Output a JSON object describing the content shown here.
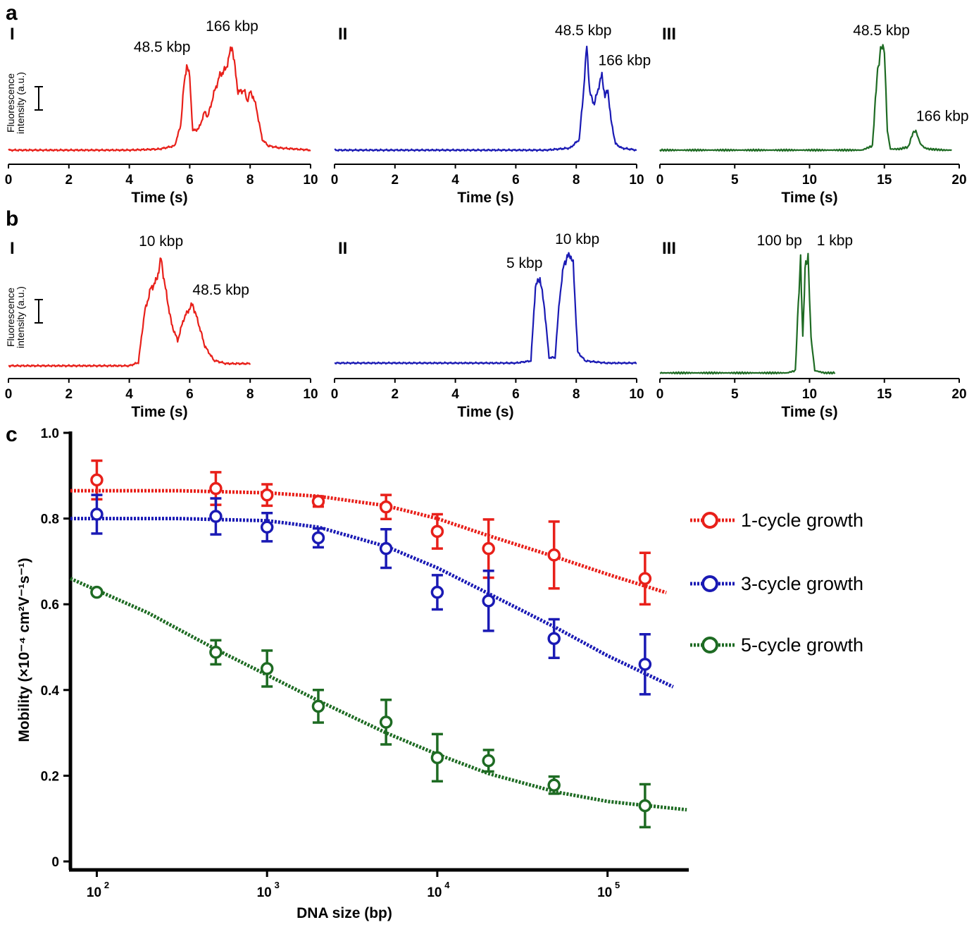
{
  "chart_data": [
    {
      "type": "line",
      "panel": "a",
      "subpanel": "I",
      "color": "#e8201a",
      "xlabel": "Time (s)",
      "ylabel": "Fluorescence intensity (a.u.)",
      "xlim": [
        0,
        10
      ],
      "xticks": [
        "0",
        "2",
        "4",
        "6",
        "8",
        "10"
      ],
      "annotations": [
        {
          "text": "48.5 kbp",
          "x": 5.9
        },
        {
          "text": "166 kbp",
          "x": 7.4
        }
      ],
      "x": [
        0,
        1,
        2,
        3,
        4,
        5,
        5.5,
        5.7,
        5.8,
        5.9,
        6.0,
        6.1,
        6.3,
        6.5,
        6.6,
        6.8,
        7.0,
        7.2,
        7.4,
        7.5,
        7.6,
        7.8,
        7.9,
        8.0,
        8.1,
        8.2,
        8.4,
        8.6,
        9,
        9.5,
        10
      ],
      "y": [
        0.02,
        0.02,
        0.02,
        0.02,
        0.02,
        0.03,
        0.06,
        0.25,
        0.6,
        0.82,
        0.7,
        0.2,
        0.22,
        0.38,
        0.33,
        0.55,
        0.72,
        0.78,
        1.0,
        0.78,
        0.56,
        0.58,
        0.48,
        0.56,
        0.52,
        0.42,
        0.12,
        0.06,
        0.04,
        0.03,
        0.02
      ]
    },
    {
      "type": "line",
      "panel": "a",
      "subpanel": "II",
      "color": "#1a1ab4",
      "xlabel": "Time (s)",
      "xlim": [
        0,
        10
      ],
      "xticks": [
        "0",
        "2",
        "4",
        "6",
        "8",
        "10"
      ],
      "annotations": [
        {
          "text": "48.5 kbp",
          "x": 8.35
        },
        {
          "text": "166 kbp",
          "x": 8.9
        }
      ],
      "x": [
        0,
        1,
        2,
        3,
        4,
        5,
        6,
        7,
        7.8,
        8.1,
        8.25,
        8.35,
        8.45,
        8.6,
        8.75,
        8.85,
        8.95,
        9.05,
        9.15,
        9.3,
        9.5,
        10
      ],
      "y": [
        0.02,
        0.02,
        0.02,
        0.02,
        0.02,
        0.02,
        0.02,
        0.02,
        0.04,
        0.12,
        0.6,
        1.0,
        0.55,
        0.45,
        0.62,
        0.72,
        0.52,
        0.58,
        0.3,
        0.08,
        0.04,
        0.02
      ]
    },
    {
      "type": "line",
      "panel": "a",
      "subpanel": "III",
      "color": "#1e6b23",
      "xlabel": "Time (s)",
      "xlim": [
        0,
        20
      ],
      "xticks": [
        "0",
        "5",
        "10",
        "15",
        "20"
      ],
      "annotations": [
        {
          "text": "48.5 kbp",
          "x": 14.8
        },
        {
          "text": "166 kbp",
          "x": 17.0
        }
      ],
      "x": [
        0,
        5,
        10,
        13.5,
        14.2,
        14.5,
        14.8,
        15.0,
        15.2,
        15.4,
        16,
        16.6,
        16.9,
        17.1,
        17.4,
        17.7,
        18,
        19,
        19.5
      ],
      "y": [
        0.02,
        0.02,
        0.02,
        0.02,
        0.06,
        0.7,
        1.0,
        0.95,
        0.2,
        0.03,
        0.03,
        0.05,
        0.18,
        0.2,
        0.08,
        0.04,
        0.03,
        0.02,
        0.02
      ]
    },
    {
      "type": "line",
      "panel": "b",
      "subpanel": "I",
      "color": "#e8201a",
      "xlabel": "Time (s)",
      "ylabel": "Fluorescence intensity (a.u.)",
      "xlim": [
        0,
        10
      ],
      "xticks": [
        "0",
        "2",
        "4",
        "6",
        "8",
        "10"
      ],
      "annotations": [
        {
          "text": "10 kbp",
          "x": 5.05
        },
        {
          "text": "48.5 kbp",
          "x": 6.1
        }
      ],
      "x": [
        0,
        1,
        2,
        3,
        4,
        4.3,
        4.5,
        4.7,
        4.9,
        5.05,
        5.2,
        5.4,
        5.6,
        5.8,
        6.0,
        6.1,
        6.3,
        6.5,
        6.8,
        7.2,
        8
      ],
      "y": [
        0.02,
        0.02,
        0.02,
        0.02,
        0.02,
        0.05,
        0.5,
        0.72,
        0.8,
        1.0,
        0.72,
        0.4,
        0.25,
        0.45,
        0.55,
        0.58,
        0.4,
        0.2,
        0.07,
        0.04,
        0.04
      ]
    },
    {
      "type": "line",
      "panel": "b",
      "subpanel": "II",
      "color": "#1a1ab4",
      "xlabel": "Time (s)",
      "xlim": [
        0,
        10
      ],
      "xticks": [
        "0",
        "2",
        "4",
        "6",
        "8",
        "10"
      ],
      "annotations": [
        {
          "text": "5 kbp",
          "x": 6.8
        },
        {
          "text": "10 kbp",
          "x": 7.8
        }
      ],
      "x": [
        0,
        1,
        2,
        3,
        4,
        5,
        6,
        6.5,
        6.65,
        6.8,
        6.95,
        7.1,
        7.3,
        7.45,
        7.6,
        7.8,
        7.9,
        8.05,
        8.3,
        9,
        10
      ],
      "y": [
        0.0,
        0.0,
        0.0,
        0.0,
        0.0,
        0.0,
        0.0,
        0.02,
        0.7,
        0.78,
        0.5,
        0.05,
        0.05,
        0.6,
        0.92,
        1.0,
        0.9,
        0.1,
        0.02,
        0.0,
        0.0
      ]
    },
    {
      "type": "line",
      "panel": "b",
      "subpanel": "III",
      "color": "#1e6b23",
      "xlabel": "Time (s)",
      "xlim": [
        0,
        20
      ],
      "xticks": [
        "0",
        "5",
        "10",
        "15",
        "20"
      ],
      "annotations": [
        {
          "text": "100 bp",
          "x": 9.4
        },
        {
          "text": "1 kbp",
          "x": 9.9
        }
      ],
      "x": [
        0,
        5,
        8.5,
        9.05,
        9.25,
        9.4,
        9.55,
        9.7,
        9.9,
        10.1,
        10.35,
        11,
        11.7
      ],
      "y": [
        0.0,
        0.0,
        0.0,
        0.02,
        0.6,
        0.97,
        0.3,
        0.9,
        1.0,
        0.3,
        0.02,
        0.0,
        0.0
      ]
    },
    {
      "type": "scatter",
      "panel": "c",
      "xlabel": "DNA size (bp)",
      "ylabel": "Mobility (×10⁻⁴ cm²V⁻¹s⁻¹)",
      "xscale": "log",
      "xlim": [
        70,
        300000
      ],
      "ylim": [
        0,
        1.0
      ],
      "xticks": [
        100,
        1000,
        10000,
        100000
      ],
      "xtick_labels": [
        "10",
        "10",
        "10",
        "10"
      ],
      "xtick_exponents": [
        "2",
        "3",
        "4",
        "5"
      ],
      "yticks": [
        "0",
        "0.2",
        "0.4",
        "0.6",
        "0.8",
        "1.0"
      ],
      "legend_position": "right",
      "x": [
        100,
        500,
        1000,
        2000,
        5000,
        10000,
        20000,
        48500,
        166000
      ],
      "series": [
        {
          "name": "1-cycle growth",
          "color": "#e8201a",
          "values": [
            0.89,
            0.87,
            0.855,
            0.84,
            0.827,
            0.77,
            0.73,
            0.715,
            0.66
          ],
          "errors": [
            0.045,
            0.038,
            0.025,
            0.012,
            0.028,
            0.04,
            0.068,
            0.078,
            0.06
          ],
          "fit_x": [
            70,
            300,
            1000,
            2000,
            5000,
            10000,
            20000,
            50000,
            100000,
            230000
          ],
          "fit_y": [
            0.865,
            0.865,
            0.86,
            0.852,
            0.83,
            0.8,
            0.76,
            0.71,
            0.67,
            0.625
          ]
        },
        {
          "name": "3-cycle growth",
          "color": "#1a1ab4",
          "values": [
            0.81,
            0.805,
            0.78,
            0.755,
            0.73,
            0.628,
            0.608,
            0.52,
            0.46
          ],
          "errors": [
            0.045,
            0.042,
            0.033,
            0.022,
            0.045,
            0.04,
            0.07,
            0.045,
            0.07
          ],
          "fit_x": [
            70,
            300,
            1000,
            2000,
            5000,
            10000,
            20000,
            50000,
            100000,
            250000
          ],
          "fit_y": [
            0.8,
            0.8,
            0.795,
            0.78,
            0.735,
            0.685,
            0.625,
            0.545,
            0.48,
            0.405
          ]
        },
        {
          "name": "5-cycle growth",
          "color": "#1e6b23",
          "values": [
            0.628,
            0.488,
            0.45,
            0.362,
            0.325,
            0.242,
            0.235,
            0.178,
            0.13
          ],
          "errors": [
            0.005,
            0.028,
            0.042,
            0.038,
            0.052,
            0.055,
            0.025,
            0.02,
            0.05
          ],
          "fit_x": [
            70,
            200,
            500,
            1000,
            2000,
            5000,
            10000,
            20000,
            50000,
            100000,
            300000
          ],
          "fit_y": [
            0.66,
            0.58,
            0.495,
            0.435,
            0.375,
            0.3,
            0.25,
            0.205,
            0.162,
            0.14,
            0.12
          ]
        }
      ]
    }
  ],
  "labels": {
    "a": "a",
    "b": "b",
    "c": "c",
    "roman": [
      "I",
      "II",
      "III"
    ],
    "ylabel_line1": "Fluorescence",
    "ylabel_line2": "intensity (a.u.)",
    "legend": [
      "1-cycle growth",
      "3-cycle growth",
      "5-cycle growth"
    ]
  }
}
